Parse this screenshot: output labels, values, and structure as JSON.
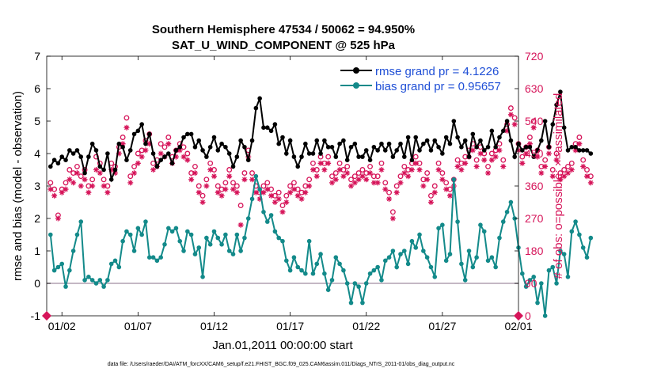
{
  "chart_data": {
    "type": "line",
    "title": "Southern Hemisphere 47534 / 50062 = 94.950%",
    "subtitle": "SAT_U_WIND_COMPONENT @ 525 hPa",
    "xlabel": "Jan.01,2011 00:00:00 start",
    "ylabel": "rmse and bias (model - observation)",
    "ylabel_right": "# of obs: o=possible; ×=assimilated",
    "xlim": [
      0,
      31
    ],
    "ylim": [
      -1,
      7
    ],
    "ylim_right": [
      0,
      720
    ],
    "x_ticks": [
      {
        "value": 1,
        "label": "01/02"
      },
      {
        "value": 6,
        "label": "01/07"
      },
      {
        "value": 11,
        "label": "01/12"
      },
      {
        "value": 16,
        "label": "01/17"
      },
      {
        "value": 21,
        "label": "01/22"
      },
      {
        "value": 26,
        "label": "01/27"
      },
      {
        "value": 31,
        "label": "02/01"
      }
    ],
    "y_ticks": [
      "-1",
      "0",
      "1",
      "2",
      "3",
      "4",
      "5",
      "6",
      "7"
    ],
    "y_ticks_right": [
      "0",
      "90",
      "180",
      "270",
      "360",
      "450",
      "540",
      "630",
      "720"
    ],
    "footer": "data file: /Users/raeder/DAI/ATM_forcXX/CAM6_setup/f.e21.FHIST_BGC.f09_025.CAM6assim.011/Diags_NTrS_2011-01/obs_diag_output.nc",
    "colors": {
      "rmse": "#000000",
      "bias": "#138a8a",
      "obs": "#d6155a",
      "zero": "#b0a0b0"
    },
    "series": [
      {
        "name": "rmse grand pr = 4.1226",
        "axis": "left",
        "x_start": 0.25,
        "x_step": 0.25,
        "values": [
          3.6,
          3.8,
          3.7,
          3.9,
          3.8,
          4.1,
          4.0,
          4.1,
          3.9,
          3.4,
          3.9,
          4.3,
          4.1,
          3.6,
          3.5,
          4.0,
          3.2,
          3.5,
          4.3,
          4.2,
          3.8,
          4.1,
          4.6,
          4.7,
          4.9,
          4.3,
          4.6,
          4.0,
          3.6,
          3.8,
          3.9,
          4.0,
          3.7,
          4.1,
          4.2,
          4.5,
          4.6,
          4.6,
          4.2,
          4.4,
          4.1,
          3.9,
          4.2,
          4.5,
          4.1,
          4.3,
          4.2,
          4.0,
          3.6,
          3.9,
          4.4,
          4.2,
          3.8,
          4.4,
          5.4,
          5.7,
          4.8,
          4.8,
          4.7,
          4.9,
          4.3,
          4.5,
          4.0,
          4.4,
          3.9,
          3.6,
          3.9,
          4.3,
          4.0,
          4.0,
          4.4,
          4.0,
          4.4,
          4.2,
          4.2,
          3.9,
          4.3,
          4.4,
          3.8,
          4.2,
          4.3,
          3.9,
          3.9,
          4.1,
          3.8,
          4.2,
          4.1,
          4.3,
          4.1,
          4.3,
          3.9,
          4.1,
          4.3,
          3.9,
          4.5,
          3.8,
          4.5,
          4.1,
          4.3,
          4.4,
          4.1,
          4.4,
          4.2,
          4.0,
          4.5,
          4.3,
          5.0,
          4.5,
          4.2,
          4.4,
          3.9,
          4.6,
          4.2,
          4.4,
          4.1,
          4.2,
          4.7,
          4.2,
          4.5,
          4.7,
          5.0,
          4.4,
          3.9,
          4.3,
          4.1,
          4.2,
          4.2,
          3.9,
          4.1,
          4.4,
          5.0,
          4.2,
          4.9,
          5.5,
          5.9,
          4.8,
          4.1,
          4.2,
          4.2,
          4.1,
          4.1,
          4.1,
          4.0
        ]
      },
      {
        "name": "bias grand pr = 0.95657",
        "axis": "left",
        "x_start": 0.25,
        "x_step": 0.25,
        "values": [
          1.5,
          0.4,
          0.5,
          0.6,
          -0.1,
          0.4,
          1.0,
          1.5,
          1.9,
          0.1,
          0.2,
          0.1,
          0.0,
          0.1,
          -0.1,
          0.1,
          0.6,
          0.7,
          0.5,
          1.3,
          1.6,
          1.5,
          1.0,
          1.7,
          1.5,
          1.9,
          0.8,
          0.8,
          0.7,
          0.8,
          1.2,
          1.7,
          1.6,
          1.7,
          1.3,
          1.0,
          1.6,
          1.5,
          0.9,
          1.1,
          0.2,
          1.4,
          1.2,
          1.6,
          1.4,
          1.2,
          1.5,
          1.0,
          0.9,
          1.5,
          1.0,
          1.4,
          2.0,
          2.6,
          3.3,
          2.9,
          2.2,
          1.9,
          2.1,
          1.6,
          1.4,
          1.3,
          0.7,
          0.4,
          0.8,
          0.5,
          0.4,
          0.3,
          1.3,
          0.3,
          0.6,
          0.9,
          0.3,
          -0.2,
          0.1,
          0.8,
          0.6,
          0.4,
          0.0,
          -0.6,
          0.0,
          -0.1,
          -0.6,
          0.0,
          0.3,
          0.4,
          0.5,
          0.1,
          0.7,
          0.8,
          1.0,
          0.5,
          0.9,
          1.0,
          0.6,
          1.3,
          1.1,
          1.5,
          1.0,
          0.8,
          0.5,
          0.2,
          1.7,
          1.8,
          0.7,
          0.9,
          3.2,
          1.9,
          0.6,
          0.1,
          1.0,
          0.5,
          0.8,
          1.8,
          1.6,
          0.7,
          0.8,
          0.5,
          1.4,
          1.9,
          2.2,
          2.5,
          2.0,
          1.1,
          0.3,
          -0.1,
          0.1,
          0.2,
          -0.6,
          0.0,
          -1.0,
          0.4,
          0.5,
          0.0,
          1.0,
          0.9,
          0.2,
          1.6,
          1.9,
          1.5,
          1.1,
          0.8,
          1.4
        ]
      },
      {
        "name": "obs possible",
        "axis": "right",
        "marker": "o",
        "x_start": 0.25,
        "x_step": 0.25,
        "values": [
          369,
          351,
          279,
          351,
          369,
          405,
          396,
          414,
          387,
          405,
          360,
          378,
          441,
          423,
          378,
          360,
          423,
          414,
          468,
          495,
          549,
          387,
          414,
          450,
          459,
          486,
          504,
          423,
          432,
          477,
          468,
          495,
          441,
          459,
          477,
          468,
          450,
          396,
          414,
          360,
          333,
          378,
          423,
          405,
          360,
          351,
          369,
          405,
          369,
          360,
          306,
          396,
          459,
          396,
          360,
          342,
          360,
          369,
          351,
          333,
          342,
          306,
          333,
          360,
          369,
          351,
          342,
          360,
          378,
          423,
          405,
          441,
          423,
          441,
          387,
          396,
          423,
          405,
          414,
          378,
          387,
          396,
          405,
          396,
          414,
          387,
          387,
          423,
          369,
          342,
          288,
          360,
          387,
          414,
          405,
          423,
          441,
          423,
          378,
          396,
          333,
          360,
          423,
          396,
          369,
          351,
          378,
          432,
          423,
          441,
          459,
          477,
          432,
          468,
          450,
          414,
          450,
          459,
          477,
          432,
          531,
          576,
          549,
          477,
          441,
          468,
          495,
          540,
          459,
          414,
          432,
          468,
          405,
          450,
          396,
          405,
          414,
          423,
          477,
          495,
          432,
          405,
          387
        ]
      },
      {
        "name": "obs assimilated",
        "axis": "right",
        "marker": "x",
        "x_start": 0.25,
        "x_step": 0.25,
        "values": [
          351,
          333,
          270,
          342,
          351,
          378,
          369,
          396,
          360,
          378,
          342,
          360,
          405,
          396,
          360,
          342,
          405,
          396,
          450,
          477,
          522,
          369,
          396,
          423,
          441,
          459,
          477,
          405,
          414,
          450,
          441,
          477,
          423,
          441,
          459,
          441,
          432,
          378,
          396,
          342,
          315,
          360,
          405,
          387,
          342,
          333,
          351,
          387,
          351,
          342,
          252,
          378,
          441,
          378,
          342,
          324,
          342,
          351,
          333,
          315,
          324,
          288,
          315,
          342,
          351,
          333,
          324,
          342,
          360,
          405,
          387,
          423,
          405,
          423,
          369,
          378,
          405,
          387,
          396,
          360,
          369,
          378,
          387,
          378,
          396,
          369,
          369,
          405,
          351,
          324,
          270,
          342,
          369,
          396,
          387,
          405,
          423,
          405,
          360,
          378,
          315,
          342,
          405,
          378,
          351,
          333,
          360,
          414,
          405,
          423,
          441,
          459,
          414,
          450,
          432,
          396,
          432,
          441,
          459,
          414,
          513,
          558,
          531,
          459,
          423,
          450,
          477,
          522,
          441,
          396,
          414,
          450,
          387,
          432,
          378,
          387,
          396,
          405,
          459,
          477,
          414,
          387,
          369
        ]
      }
    ],
    "legend_position": "top-right"
  }
}
